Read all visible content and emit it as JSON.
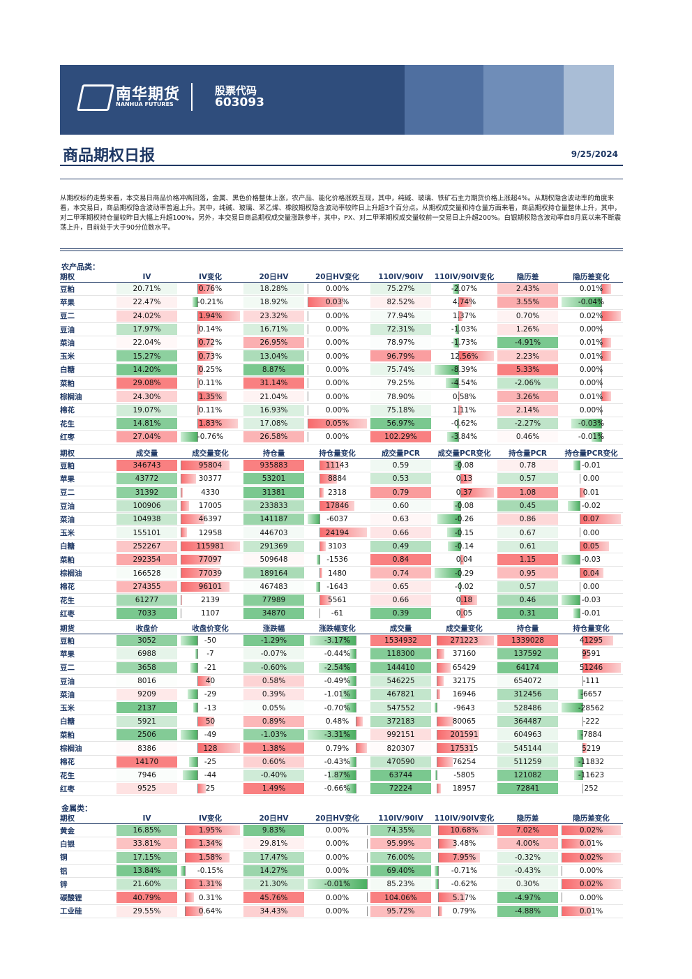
{
  "header": {
    "logo_cn": "南华期货",
    "logo_en": "NANHUA FUTURES",
    "stock_label": "股票代码",
    "stock_code": "603093"
  },
  "title": "商品期权日报",
  "date": "9/25/2024",
  "summary": "从期权标的走势来看，本交易日商品价格冲高回落，金属、黑色价格整体上涨，农产品、能化价格涨跌互现，其中，纯碱、玻璃、铁矿石主力期货价格上涨超4%。从期权隐含波动率的角度来看，本交易日，商品期权隐含波动率普遍上升。其中，纯碱、玻璃、苯乙烯、橡胶期权隐含波动率较昨日上升超3个百分点。从期权成交量和持仓量方面来看，商品期权持仓量整体上升，其中，对二甲苯期权持仓量较昨日大幅上升超100%。另外，本交易日商品期权成交量涨跌参半，其中，PX、对二甲苯期权成交量较前一交易日上升超200%。白银期权隐含波动率自8月底以来不断震荡上升，目前处于大于90分位数水平。",
  "tables": [
    {
      "section": "农产品类：",
      "columns": [
        "期权",
        "IV",
        "IV变化",
        "20日HV",
        "20日HV变化",
        "110IV/90IV",
        "110IV/90IV变化",
        "隐历差",
        "隐历差变化"
      ],
      "rows": [
        [
          "豆粕",
          "20.71%",
          "0.76%",
          "18.28%",
          "0.00%",
          "75.27%",
          "-2.07%",
          "2.43%",
          "0.01%"
        ],
        [
          "苹果",
          "22.47%",
          "-0.21%",
          "18.92%",
          "0.03%",
          "82.52%",
          "4.74%",
          "3.55%",
          "-0.04%"
        ],
        [
          "豆二",
          "24.02%",
          "1.94%",
          "23.32%",
          "0.00%",
          "77.94%",
          "1.37%",
          "0.70%",
          "0.02%"
        ],
        [
          "豆油",
          "17.97%",
          "0.14%",
          "16.71%",
          "0.00%",
          "72.31%",
          "-1.03%",
          "1.26%",
          "0.00%"
        ],
        [
          "菜油",
          "22.04%",
          "0.72%",
          "26.95%",
          "0.00%",
          "78.97%",
          "-1.73%",
          "-4.91%",
          "0.01%"
        ],
        [
          "玉米",
          "15.27%",
          "0.73%",
          "13.04%",
          "0.00%",
          "96.79%",
          "12.56%",
          "2.23%",
          "0.01%"
        ],
        [
          "白糖",
          "14.20%",
          "0.25%",
          "8.87%",
          "0.00%",
          "75.74%",
          "-8.39%",
          "5.33%",
          "0.00%"
        ],
        [
          "菜粕",
          "29.08%",
          "0.11%",
          "31.14%",
          "0.00%",
          "79.25%",
          "-4.54%",
          "-2.06%",
          "0.00%"
        ],
        [
          "棕榈油",
          "24.30%",
          "1.35%",
          "21.04%",
          "0.00%",
          "78.90%",
          "0.58%",
          "3.26%",
          "0.01%"
        ],
        [
          "棉花",
          "19.07%",
          "0.11%",
          "16.93%",
          "0.00%",
          "75.18%",
          "1.11%",
          "2.14%",
          "0.00%"
        ],
        [
          "花生",
          "14.81%",
          "1.83%",
          "17.08%",
          "0.05%",
          "56.97%",
          "-0.62%",
          "-2.27%",
          "-0.03%"
        ],
        [
          "红枣",
          "27.04%",
          "-0.76%",
          "26.58%",
          "0.00%",
          "102.29%",
          "-3.84%",
          "0.46%",
          "-0.01%"
        ]
      ]
    },
    {
      "columns": [
        "期权",
        "成交量",
        "成交量变化",
        "持仓量",
        "持仓量变化",
        "成交量PCR",
        "成交量PCR变化",
        "持仓量PCR",
        "持仓量PCR变化"
      ],
      "rows": [
        [
          "豆粕",
          "346743",
          "95804",
          "935883",
          "11143",
          "0.59",
          "-0.08",
          "0.78",
          "-0.01"
        ],
        [
          "苹果",
          "43772",
          "30377",
          "53201",
          "8884",
          "0.53",
          "0.13",
          "0.57",
          "0.00"
        ],
        [
          "豆二",
          "31392",
          "4330",
          "31381",
          "2318",
          "0.79",
          "0.37",
          "1.08",
          "0.01"
        ],
        [
          "豆油",
          "100906",
          "17005",
          "233833",
          "17846",
          "0.60",
          "-0.08",
          "0.45",
          "-0.02"
        ],
        [
          "菜油",
          "104938",
          "46397",
          "141187",
          "-6037",
          "0.63",
          "-0.26",
          "0.86",
          "0.07"
        ],
        [
          "玉米",
          "155101",
          "12958",
          "446703",
          "24194",
          "0.66",
          "-0.15",
          "0.67",
          "0.00"
        ],
        [
          "白糖",
          "252267",
          "115981",
          "291369",
          "3103",
          "0.49",
          "-0.14",
          "0.61",
          "0.05"
        ],
        [
          "菜粕",
          "292354",
          "77097",
          "509648",
          "-1536",
          "0.84",
          "0.04",
          "1.15",
          "-0.03"
        ],
        [
          "棕榈油",
          "166528",
          "77039",
          "189164",
          "1480",
          "0.74",
          "-0.29",
          "0.95",
          "0.04"
        ],
        [
          "棉花",
          "274355",
          "96101",
          "467483",
          "-1643",
          "0.65",
          "-0.02",
          "0.57",
          "0.00"
        ],
        [
          "花生",
          "61277",
          "2139",
          "77989",
          "5561",
          "0.66",
          "0.18",
          "0.46",
          "-0.03"
        ],
        [
          "红枣",
          "7033",
          "1107",
          "34870",
          "-61",
          "0.39",
          "0.05",
          "0.31",
          "-0.01"
        ]
      ]
    },
    {
      "columns": [
        "期货",
        "收盘价",
        "收盘价变化",
        "涨跌幅",
        "涨跌幅变化",
        "成交量",
        "成交量变化",
        "持仓量",
        "持仓量变化"
      ],
      "rows": [
        [
          "豆粕",
          "3052",
          "-50",
          "-1.29%",
          "-3.17%",
          "1534932",
          "271223",
          "1339028",
          "41295"
        ],
        [
          "苹果",
          "6988",
          "-7",
          "-0.07%",
          "-0.44%",
          "118300",
          "37160",
          "137592",
          "9591"
        ],
        [
          "豆二",
          "3658",
          "-21",
          "-0.60%",
          "-2.54%",
          "144410",
          "65429",
          "64174",
          "51246"
        ],
        [
          "豆油",
          "8016",
          "40",
          "0.58%",
          "-0.49%",
          "546225",
          "32175",
          "654072",
          "-111"
        ],
        [
          "菜油",
          "9209",
          "-29",
          "0.39%",
          "-1.01%",
          "467821",
          "16946",
          "312456",
          "-6657"
        ],
        [
          "玉米",
          "2137",
          "-13",
          "0.05%",
          "-0.70%",
          "547552",
          "-9643",
          "528486",
          "-28562"
        ],
        [
          "白糖",
          "5921",
          "50",
          "0.89%",
          "0.48%",
          "372183",
          "80065",
          "364487",
          "-222"
        ],
        [
          "菜粕",
          "2506",
          "-49",
          "-1.03%",
          "-3.31%",
          "992151",
          "201591",
          "604963",
          "-7884"
        ],
        [
          "棕榈油",
          "8386",
          "128",
          "1.38%",
          "0.79%",
          "820307",
          "175315",
          "545144",
          "5219"
        ],
        [
          "棉花",
          "14170",
          "-25",
          "0.60%",
          "-0.43%",
          "470590",
          "76254",
          "511259",
          "-11832"
        ],
        [
          "花生",
          "7946",
          "-44",
          "-0.40%",
          "-1.87%",
          "63744",
          "-5805",
          "121082",
          "-11623"
        ],
        [
          "红枣",
          "9525",
          "25",
          "1.49%",
          "-0.66%",
          "72224",
          "18957",
          "72841",
          "252"
        ]
      ]
    },
    {
      "section": "金属类：",
      "columns": [
        "期权",
        "IV",
        "IV变化",
        "20日HV",
        "20日HV变化",
        "110IV/90IV",
        "110IV/90IV变化",
        "隐历差",
        "隐历差变化"
      ],
      "rows": [
        [
          "黄金",
          "16.85%",
          "1.95%",
          "9.83%",
          "0.00%",
          "74.35%",
          "10.68%",
          "7.02%",
          "0.02%"
        ],
        [
          "白银",
          "33.81%",
          "1.34%",
          "29.81%",
          "0.00%",
          "95.99%",
          "3.48%",
          "4.00%",
          "0.01%"
        ],
        [
          "铜",
          "17.15%",
          "1.58%",
          "17.47%",
          "0.00%",
          "76.00%",
          "7.95%",
          "-0.32%",
          "0.02%"
        ],
        [
          "铝",
          "13.84%",
          "-0.15%",
          "14.27%",
          "0.00%",
          "69.40%",
          "-0.71%",
          "-0.43%",
          "0.00%"
        ],
        [
          "锌",
          "21.60%",
          "1.31%",
          "21.30%",
          "-0.01%",
          "85.23%",
          "-0.62%",
          "0.30%",
          "0.02%"
        ],
        [
          "碳酸锂",
          "40.79%",
          "0.31%",
          "45.76%",
          "0.00%",
          "104.06%",
          "5.17%",
          "-4.97%",
          "0.00%"
        ],
        [
          "工业硅",
          "29.55%",
          "0.64%",
          "34.43%",
          "0.00%",
          "95.72%",
          "0.79%",
          "-4.88%",
          "0.01%"
        ]
      ]
    }
  ]
}
